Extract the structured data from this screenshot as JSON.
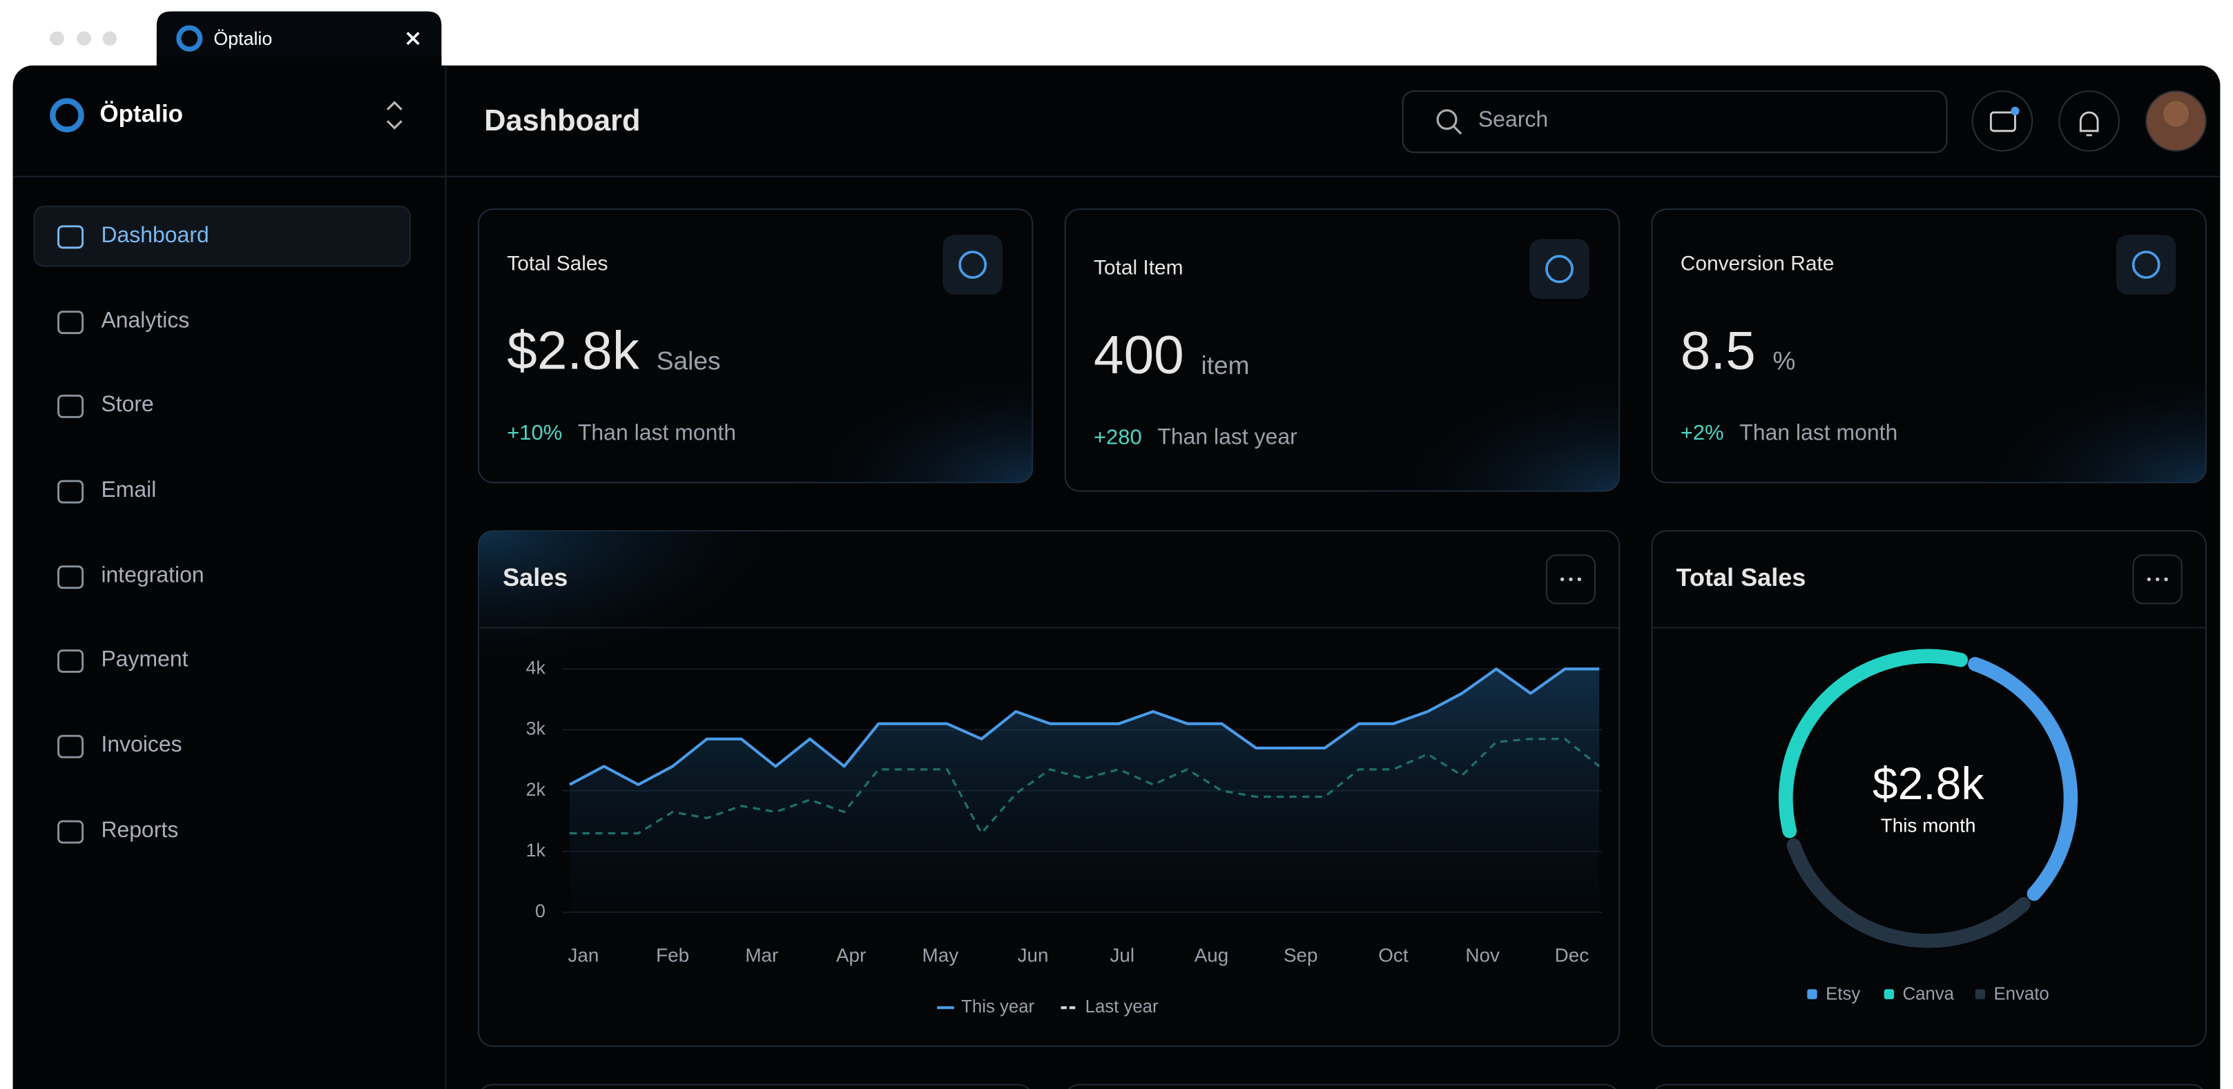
{
  "tab": {
    "title": "Öptalio"
  },
  "brand": "Öptalio",
  "nav": [
    "Dashboard",
    "Analytics",
    "Store",
    "Email",
    "integration",
    "Payment",
    "Invoices",
    "Reports"
  ],
  "header": {
    "title": "Dashboard",
    "search_placeholder": "Search"
  },
  "cards": [
    {
      "label": "Total Sales",
      "value": "$2.8k",
      "unit": "Sales",
      "delta": "+10%",
      "note": "Than last month"
    },
    {
      "label": "Total Item",
      "value": "400",
      "unit": "item",
      "delta": "+280",
      "note": "Than last year"
    },
    {
      "label": "Conversion Rate",
      "value": "8.5",
      "unit": "%",
      "delta": "+2%",
      "note": "Than last month"
    }
  ],
  "chart_data": [
    {
      "type": "line",
      "title": "Sales",
      "x": [
        0,
        1,
        2,
        3,
        4,
        5,
        6,
        7,
        8,
        9,
        10,
        11,
        12,
        13,
        14,
        15,
        16,
        17,
        18,
        19,
        20,
        21,
        22,
        23,
        24,
        25,
        26,
        27,
        28,
        29,
        30
      ],
      "xlim": [
        0,
        30
      ],
      "xticks": [
        {
          "value": 0.4,
          "label": "Jan"
        },
        {
          "value": 3.0,
          "label": "Feb"
        },
        {
          "value": 5.6,
          "label": "Mar"
        },
        {
          "value": 8.2,
          "label": "Apr"
        },
        {
          "value": 10.8,
          "label": "May"
        },
        {
          "value": 13.5,
          "label": "Jun"
        },
        {
          "value": 16.1,
          "label": "Jul"
        },
        {
          "value": 18.7,
          "label": "Aug"
        },
        {
          "value": 21.3,
          "label": "Sep"
        },
        {
          "value": 24.0,
          "label": "Oct"
        },
        {
          "value": 26.6,
          "label": "Nov"
        },
        {
          "value": 29.2,
          "label": "Dec"
        }
      ],
      "ylim": [
        0,
        4000
      ],
      "yticks": [
        0,
        {
          "value": 1000,
          "label": "1k"
        },
        {
          "value": 2000,
          "label": "2k"
        },
        {
          "value": 3000,
          "label": "3k"
        },
        {
          "value": 4000,
          "label": "4k"
        }
      ],
      "grid": true,
      "series": [
        {
          "name": "This year",
          "color": "#4a9be8",
          "style": "solid",
          "values": [
            2100,
            2400,
            2100,
            2400,
            2850,
            2850,
            2400,
            2850,
            2400,
            3100,
            3100,
            3100,
            2850,
            3300,
            3100,
            3100,
            3100,
            3300,
            3100,
            3100,
            2700,
            2700,
            2700,
            3100,
            3100,
            3300,
            3600,
            4000,
            3600,
            4000,
            4000
          ]
        },
        {
          "name": "Last year",
          "color": "#1f6f6a",
          "style": "dashed",
          "values": [
            1300,
            1300,
            1300,
            1650,
            1550,
            1750,
            1650,
            1850,
            1650,
            2350,
            2350,
            2350,
            1300,
            1950,
            2350,
            2200,
            2350,
            2100,
            2350,
            2000,
            1900,
            1900,
            1900,
            2350,
            2350,
            2600,
            2250,
            2800,
            2850,
            2850,
            2400
          ]
        }
      ]
    },
    {
      "type": "donut",
      "title": "Total Sales",
      "center_value": "$2.8k",
      "center_label": "This month",
      "categories": [
        "Etsy",
        "Canva",
        "Envato"
      ],
      "values": [
        33,
        34,
        33
      ],
      "colors": [
        "#4a9be8",
        "#22d3c5",
        "#253443"
      ]
    }
  ]
}
